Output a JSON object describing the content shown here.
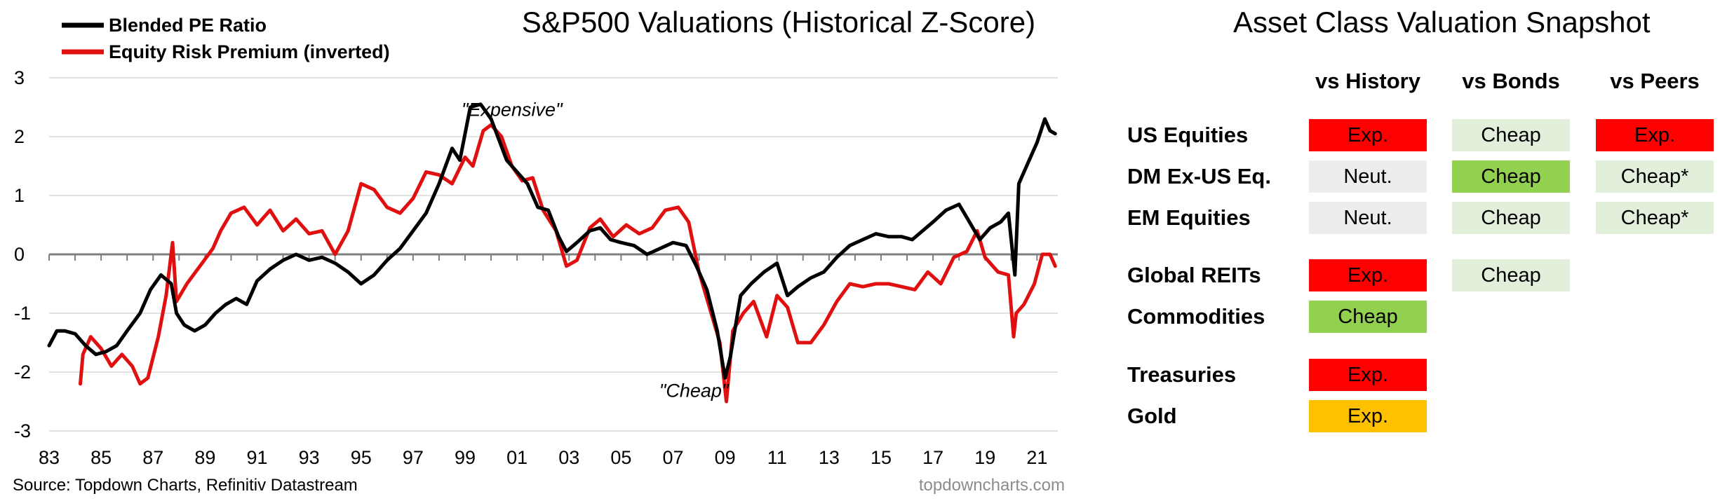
{
  "chart_data": {
    "type": "line",
    "title": "S&P500 Valuations (Historical Z-Score)",
    "source": "Source: Topdown Charts, Refinitiv Datastream",
    "watermark": "topdowncharts.com",
    "xlabel": "",
    "ylabel": "",
    "xlim": [
      1983,
      2021.8
    ],
    "ylim": [
      -3,
      3
    ],
    "x_ticks": [
      1983,
      1985,
      1987,
      1989,
      1991,
      1993,
      1995,
      1997,
      1999,
      2001,
      2003,
      2005,
      2007,
      2009,
      2011,
      2013,
      2015,
      2017,
      2019,
      2021
    ],
    "x_tick_labels": [
      "83",
      "85",
      "87",
      "89",
      "91",
      "93",
      "95",
      "97",
      "99",
      "01",
      "03",
      "05",
      "07",
      "09",
      "11",
      "13",
      "15",
      "17",
      "19",
      "21"
    ],
    "y_ticks": [
      3,
      2,
      1,
      0,
      -1,
      -2,
      -3
    ],
    "y_tick_labels": [
      "3",
      "2",
      "1",
      "0",
      "-1",
      "-2",
      "-3"
    ],
    "grid": "horizontal",
    "legend_position": "top-left",
    "annotations": [
      {
        "text": "\"Expensive\"",
        "x": 2000.8,
        "y": 2.35
      },
      {
        "text": "\"Cheap\"",
        "x": 2007.8,
        "y": -2.42
      }
    ],
    "series": [
      {
        "name": "Blended PE Ratio",
        "color": "#000000",
        "x": [
          1983.0,
          1983.3,
          1983.6,
          1984.0,
          1984.4,
          1984.8,
          1985.2,
          1985.6,
          1986.0,
          1986.5,
          1986.9,
          1987.3,
          1987.7,
          1987.9,
          1988.2,
          1988.6,
          1989.0,
          1989.4,
          1989.8,
          1990.2,
          1990.6,
          1991.0,
          1991.5,
          1992.0,
          1992.5,
          1993.0,
          1993.5,
          1994.0,
          1994.5,
          1995.0,
          1995.5,
          1996.0,
          1996.5,
          1997.0,
          1997.5,
          1998.0,
          1998.5,
          1998.8,
          1999.2,
          1999.6,
          2000.0,
          2000.3,
          2000.6,
          2001.0,
          2001.4,
          2001.8,
          2002.2,
          2002.6,
          2002.9,
          2003.3,
          2003.8,
          2004.2,
          2004.6,
          2005.0,
          2005.5,
          2006.0,
          2006.5,
          2007.0,
          2007.5,
          2007.9,
          2008.3,
          2008.7,
          2009.0,
          2009.2,
          2009.6,
          2010.0,
          2010.5,
          2011.0,
          2011.4,
          2011.8,
          2012.3,
          2012.8,
          2013.3,
          2013.8,
          2014.3,
          2014.8,
          2015.3,
          2015.8,
          2016.2,
          2016.6,
          2017.0,
          2017.5,
          2018.0,
          2018.4,
          2018.8,
          2019.2,
          2019.6,
          2019.9,
          2020.15,
          2020.3,
          2020.6,
          2021.0,
          2021.3,
          2021.5,
          2021.7
        ],
        "values": [
          -1.55,
          -1.3,
          -1.3,
          -1.35,
          -1.55,
          -1.7,
          -1.65,
          -1.55,
          -1.3,
          -1.0,
          -0.6,
          -0.35,
          -0.5,
          -1.0,
          -1.2,
          -1.3,
          -1.2,
          -1.0,
          -0.85,
          -0.75,
          -0.85,
          -0.45,
          -0.25,
          -0.1,
          0.0,
          -0.1,
          -0.05,
          -0.15,
          -0.3,
          -0.5,
          -0.35,
          -0.1,
          0.1,
          0.4,
          0.7,
          1.2,
          1.8,
          1.6,
          2.5,
          2.55,
          2.3,
          1.95,
          1.6,
          1.4,
          1.2,
          0.8,
          0.75,
          0.3,
          0.05,
          0.2,
          0.4,
          0.45,
          0.25,
          0.2,
          0.15,
          0.0,
          0.1,
          0.2,
          0.15,
          -0.2,
          -0.6,
          -1.3,
          -2.1,
          -1.75,
          -0.7,
          -0.5,
          -0.3,
          -0.15,
          -0.7,
          -0.55,
          -0.4,
          -0.3,
          -0.05,
          0.15,
          0.25,
          0.35,
          0.3,
          0.3,
          0.25,
          0.4,
          0.55,
          0.75,
          0.85,
          0.55,
          0.25,
          0.45,
          0.55,
          0.7,
          -0.35,
          1.2,
          1.5,
          1.9,
          2.3,
          2.1,
          2.05
        ]
      },
      {
        "name": "Equity Risk Premium (inverted)",
        "color": "#e01010",
        "x": [
          1984.2,
          1984.3,
          1984.6,
          1985.0,
          1985.4,
          1985.8,
          1986.2,
          1986.5,
          1986.8,
          1987.2,
          1987.5,
          1987.75,
          1987.9,
          1988.3,
          1988.8,
          1989.3,
          1989.6,
          1990.0,
          1990.5,
          1991.0,
          1991.5,
          1992.0,
          1992.5,
          1993.0,
          1993.5,
          1994.0,
          1994.5,
          1995.0,
          1995.5,
          1996.0,
          1996.5,
          1997.0,
          1997.5,
          1998.0,
          1998.5,
          1999.0,
          1999.3,
          1999.7,
          2000.0,
          2000.4,
          2000.8,
          2001.2,
          2001.6,
          2002.0,
          2002.5,
          2002.9,
          2003.3,
          2003.8,
          2004.2,
          2004.7,
          2005.2,
          2005.7,
          2006.2,
          2006.7,
          2007.2,
          2007.6,
          2008.0,
          2008.4,
          2008.8,
          2009.05,
          2009.3,
          2009.7,
          2010.1,
          2010.6,
          2011.0,
          2011.4,
          2011.8,
          2012.3,
          2012.8,
          2013.3,
          2013.8,
          2014.3,
          2014.8,
          2015.3,
          2015.8,
          2016.3,
          2016.8,
          2017.3,
          2017.8,
          2018.3,
          2018.7,
          2019.0,
          2019.5,
          2019.9,
          2020.1,
          2020.2,
          2020.5,
          2020.9,
          2021.2,
          2021.5,
          2021.7
        ],
        "values": [
          -2.2,
          -1.7,
          -1.4,
          -1.6,
          -1.9,
          -1.7,
          -1.9,
          -2.2,
          -2.1,
          -1.4,
          -0.7,
          0.2,
          -0.8,
          -0.5,
          -0.2,
          0.1,
          0.4,
          0.7,
          0.8,
          0.5,
          0.75,
          0.4,
          0.6,
          0.35,
          0.4,
          0.0,
          0.4,
          1.2,
          1.1,
          0.8,
          0.7,
          0.95,
          1.4,
          1.35,
          1.2,
          1.65,
          1.5,
          2.1,
          2.2,
          2.0,
          1.5,
          1.25,
          1.3,
          0.75,
          0.4,
          -0.2,
          -0.1,
          0.45,
          0.6,
          0.3,
          0.5,
          0.35,
          0.45,
          0.75,
          0.8,
          0.55,
          -0.3,
          -0.9,
          -1.5,
          -2.5,
          -1.3,
          -1.0,
          -0.8,
          -1.4,
          -0.7,
          -0.9,
          -1.5,
          -1.5,
          -1.2,
          -0.8,
          -0.5,
          -0.55,
          -0.5,
          -0.5,
          -0.55,
          -0.6,
          -0.3,
          -0.5,
          -0.05,
          0.05,
          0.4,
          -0.05,
          -0.3,
          -0.35,
          -1.4,
          -1.0,
          -0.85,
          -0.5,
          0.0,
          0.0,
          -0.2
        ]
      }
    ]
  },
  "snapshot": {
    "title": "Asset Class Valuation Snapshot",
    "columns": [
      "vs History",
      "vs Bonds",
      "vs Peers"
    ],
    "rows": [
      {
        "label": "US Equities",
        "cells": [
          {
            "text": "Exp.",
            "color": "#ff0000"
          },
          {
            "text": "Cheap",
            "color": "#e2efda"
          },
          {
            "text": "Exp.",
            "color": "#ff0000"
          }
        ]
      },
      {
        "label": "DM Ex-US Eq.",
        "cells": [
          {
            "text": "Neut.",
            "color": "#ededed"
          },
          {
            "text": "Cheap",
            "color": "#92d050"
          },
          {
            "text": "Cheap*",
            "color": "#e2efda"
          }
        ]
      },
      {
        "label": "EM Equities",
        "cells": [
          {
            "text": "Neut.",
            "color": "#ededed"
          },
          {
            "text": "Cheap",
            "color": "#e2efda"
          },
          {
            "text": "Cheap*",
            "color": "#e2efda"
          }
        ]
      },
      {
        "label": "Global REITs",
        "cells": [
          {
            "text": "Exp.",
            "color": "#ff0000"
          },
          {
            "text": "Cheap",
            "color": "#e2efda"
          },
          null
        ]
      },
      {
        "label": "Commodities",
        "cells": [
          {
            "text": "Cheap",
            "color": "#92d050"
          },
          null,
          null
        ]
      },
      {
        "label": "Treasuries",
        "cells": [
          {
            "text": "Exp.",
            "color": "#ff0000"
          },
          null,
          null
        ]
      },
      {
        "label": "Gold",
        "cells": [
          {
            "text": "Exp.",
            "color": "#ffc000"
          },
          null,
          null
        ]
      }
    ]
  }
}
